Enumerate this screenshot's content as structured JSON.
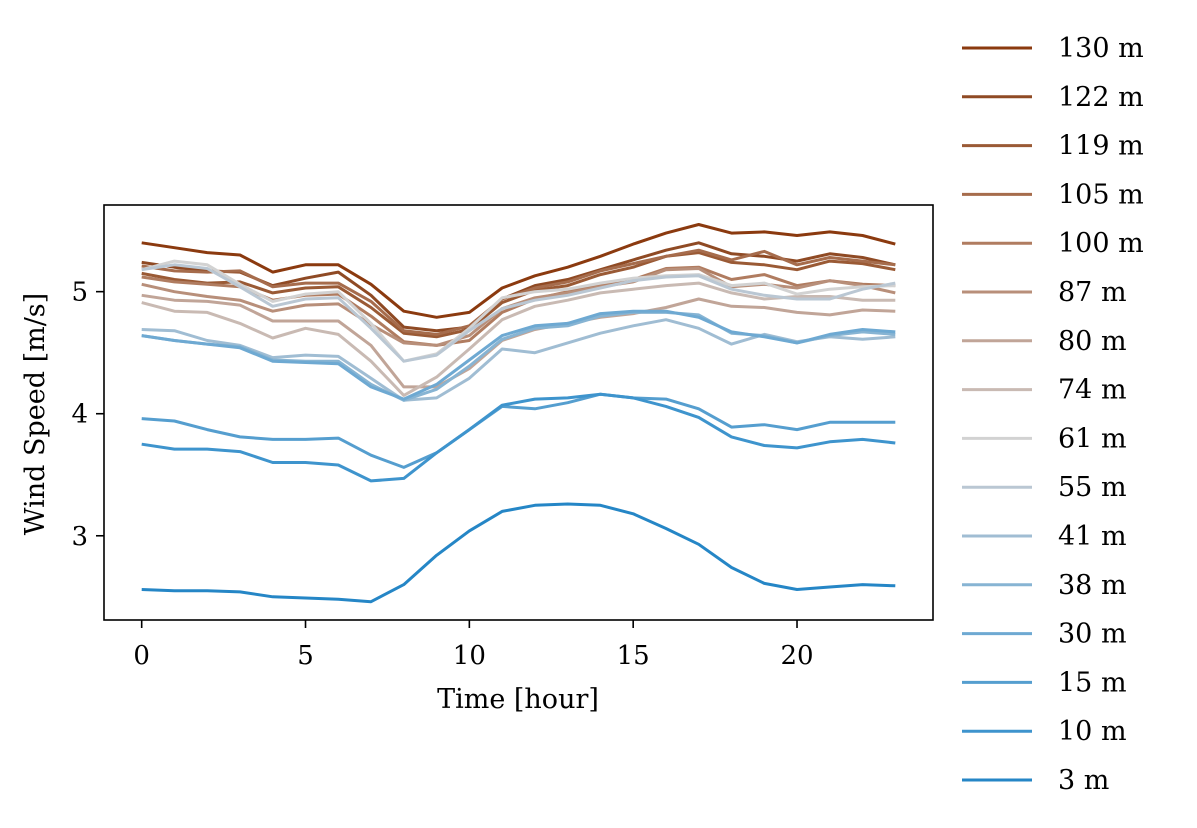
{
  "chart_data": {
    "type": "line",
    "xlabel": "Time [hour]",
    "ylabel": "Wind Speed [m/s]",
    "xlim": [
      -1.15,
      24.15
    ],
    "ylim": [
      2.31,
      5.71
    ],
    "xticks": [
      0,
      5,
      10,
      15,
      20
    ],
    "yticks": [
      3,
      4,
      5
    ],
    "grid": false,
    "legend_position": "outside-right",
    "x": [
      0,
      1,
      2,
      3,
      4,
      5,
      6,
      7,
      8,
      9,
      10,
      11,
      12,
      13,
      14,
      15,
      16,
      17,
      18,
      19,
      20,
      21,
      22,
      23
    ],
    "series": [
      {
        "name": "130 m",
        "color": "#8b3a0f",
        "values": [
          5.4,
          5.36,
          5.32,
          5.3,
          5.16,
          5.22,
          5.22,
          5.06,
          4.84,
          4.79,
          4.83,
          5.03,
          5.13,
          5.2,
          5.29,
          5.39,
          5.48,
          5.55,
          5.48,
          5.49,
          5.46,
          5.49,
          5.46,
          5.39
        ]
      },
      {
        "name": "122 m",
        "color": "#8f4a24",
        "values": [
          5.24,
          5.2,
          5.17,
          5.16,
          5.05,
          5.11,
          5.16,
          4.97,
          4.71,
          4.68,
          4.71,
          4.94,
          5.05,
          5.1,
          5.18,
          5.26,
          5.34,
          5.4,
          5.31,
          5.29,
          5.25,
          5.31,
          5.28,
          5.22
        ]
      },
      {
        "name": "119 m",
        "color": "#9a5a35",
        "values": [
          5.15,
          5.1,
          5.07,
          5.08,
          4.99,
          5.03,
          5.04,
          4.87,
          4.66,
          4.63,
          4.69,
          4.91,
          5.01,
          5.05,
          5.14,
          5.2,
          5.29,
          5.32,
          5.24,
          5.22,
          5.18,
          5.25,
          5.23,
          5.18
        ]
      },
      {
        "name": "105 m",
        "color": "#a66c4c",
        "values": [
          5.21,
          5.17,
          5.16,
          5.17,
          5.04,
          5.07,
          5.07,
          4.92,
          4.68,
          4.65,
          4.72,
          4.94,
          5.03,
          5.08,
          5.17,
          5.23,
          5.29,
          5.34,
          5.26,
          5.33,
          5.22,
          5.28,
          5.25,
          5.22
        ]
      },
      {
        "name": "100 m",
        "color": "#b07c60",
        "values": [
          5.12,
          5.08,
          5.06,
          5.04,
          4.93,
          4.97,
          4.98,
          4.8,
          4.59,
          4.56,
          4.6,
          4.83,
          4.94,
          5.0,
          5.05,
          5.1,
          5.19,
          5.2,
          5.1,
          5.14,
          5.05,
          5.09,
          5.06,
          5.05
        ]
      },
      {
        "name": "87 m",
        "color": "#b88f7a",
        "values": [
          5.06,
          5.0,
          4.96,
          4.93,
          4.84,
          4.89,
          4.9,
          4.73,
          4.58,
          4.56,
          4.64,
          4.86,
          4.95,
          4.99,
          5.04,
          5.08,
          5.18,
          5.19,
          5.04,
          5.06,
          5.03,
          5.09,
          5.05,
          4.99
        ]
      },
      {
        "name": "80 m",
        "color": "#c1a598",
        "values": [
          4.97,
          4.93,
          4.92,
          4.89,
          4.76,
          4.76,
          4.76,
          4.56,
          4.22,
          4.22,
          4.37,
          4.6,
          4.69,
          4.74,
          4.79,
          4.82,
          4.87,
          4.94,
          4.88,
          4.87,
          4.83,
          4.81,
          4.85,
          4.84
        ]
      },
      {
        "name": "74 m",
        "color": "#c9bab3",
        "values": [
          4.91,
          4.84,
          4.83,
          4.74,
          4.62,
          4.7,
          4.65,
          4.43,
          4.15,
          4.3,
          4.53,
          4.77,
          4.88,
          4.93,
          4.99,
          5.02,
          5.05,
          5.07,
          4.99,
          4.94,
          4.96,
          4.96,
          4.93,
          4.93
        ]
      },
      {
        "name": "61 m",
        "color": "#d2d2d2",
        "values": [
          5.18,
          5.25,
          5.22,
          5.06,
          4.92,
          4.98,
          5.0,
          4.74,
          4.43,
          4.49,
          4.7,
          4.95,
          5.0,
          5.02,
          5.07,
          5.11,
          5.13,
          5.14,
          5.05,
          5.07,
          4.98,
          5.02,
          5.04,
          5.05
        ]
      },
      {
        "name": "55 m",
        "color": "#bac7d3",
        "values": [
          5.18,
          5.22,
          5.19,
          5.04,
          4.88,
          4.94,
          4.95,
          4.7,
          4.43,
          4.48,
          4.68,
          4.86,
          4.93,
          4.97,
          5.03,
          5.09,
          5.12,
          5.13,
          5.02,
          4.97,
          4.94,
          4.94,
          5.02,
          5.07
        ]
      },
      {
        "name": "41 m",
        "color": "#a0bdd3",
        "values": [
          4.69,
          4.68,
          4.6,
          4.56,
          4.46,
          4.48,
          4.47,
          4.29,
          4.11,
          4.13,
          4.29,
          4.53,
          4.5,
          4.58,
          4.66,
          4.72,
          4.77,
          4.7,
          4.57,
          4.65,
          4.59,
          4.63,
          4.61,
          4.63
        ]
      },
      {
        "name": "38 m",
        "color": "#87b4d3",
        "values": [
          4.64,
          4.6,
          4.57,
          4.55,
          4.44,
          4.43,
          4.43,
          4.24,
          4.11,
          4.2,
          4.39,
          4.61,
          4.7,
          4.72,
          4.8,
          4.83,
          4.83,
          4.81,
          4.66,
          4.64,
          4.58,
          4.64,
          4.67,
          4.65
        ]
      },
      {
        "name": "30 m",
        "color": "#6ea9d2",
        "values": [
          4.64,
          4.6,
          4.57,
          4.54,
          4.43,
          4.42,
          4.41,
          4.22,
          4.12,
          4.24,
          4.44,
          4.64,
          4.72,
          4.74,
          4.82,
          4.84,
          4.84,
          4.79,
          4.67,
          4.63,
          4.58,
          4.65,
          4.69,
          4.67
        ]
      },
      {
        "name": "15 m",
        "color": "#559ecf",
        "values": [
          3.96,
          3.94,
          3.87,
          3.81,
          3.79,
          3.79,
          3.8,
          3.66,
          3.56,
          3.68,
          3.87,
          4.06,
          4.04,
          4.09,
          4.16,
          4.13,
          4.12,
          4.04,
          3.89,
          3.91,
          3.87,
          3.93,
          3.93,
          3.93
        ]
      },
      {
        "name": "10 m",
        "color": "#3e94cd",
        "values": [
          3.75,
          3.71,
          3.71,
          3.69,
          3.6,
          3.6,
          3.58,
          3.45,
          3.47,
          3.68,
          3.87,
          4.07,
          4.12,
          4.13,
          4.16,
          4.13,
          4.06,
          3.97,
          3.81,
          3.74,
          3.72,
          3.77,
          3.79,
          3.76
        ]
      },
      {
        "name": "3 m",
        "color": "#2586c6",
        "values": [
          2.56,
          2.55,
          2.55,
          2.54,
          2.5,
          2.49,
          2.48,
          2.46,
          2.6,
          2.84,
          3.04,
          3.2,
          3.25,
          3.26,
          3.25,
          3.18,
          3.06,
          2.93,
          2.74,
          2.61,
          2.56,
          2.58,
          2.6,
          2.59
        ]
      }
    ]
  }
}
